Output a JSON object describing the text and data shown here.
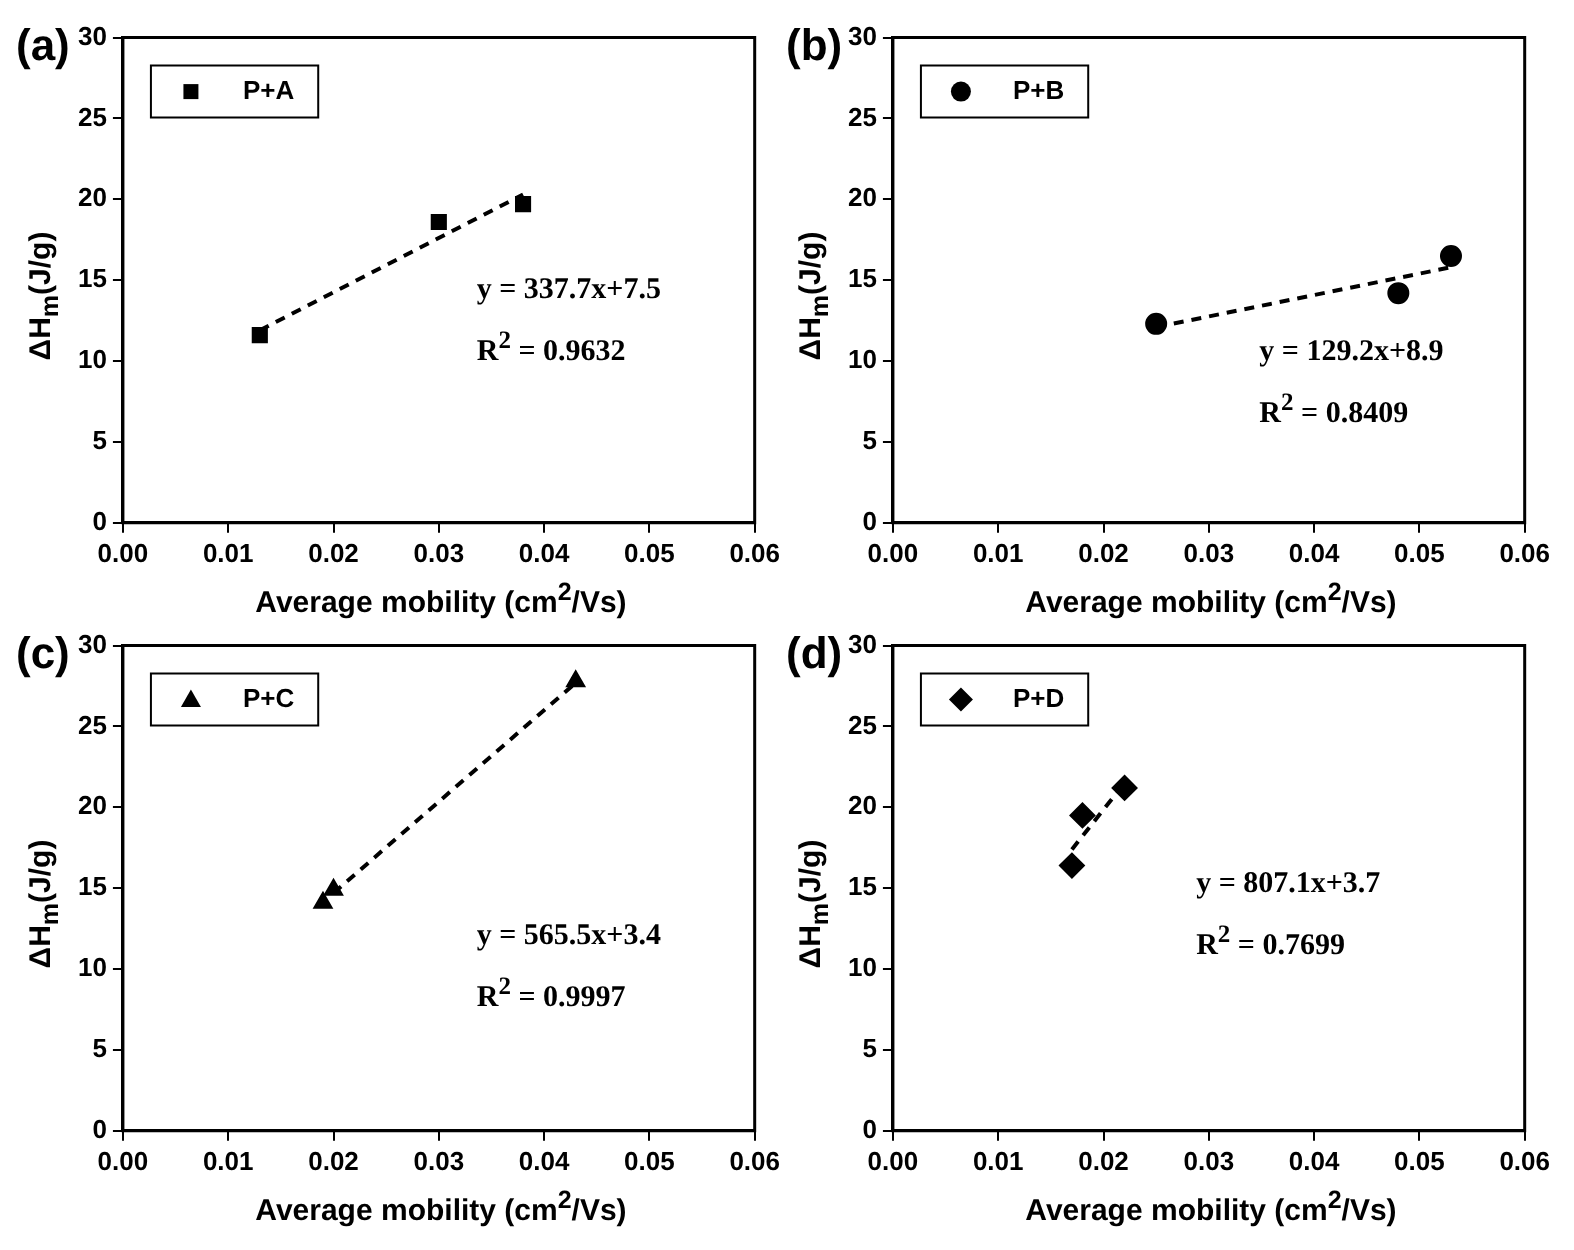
{
  "chart_data": [
    {
      "type": "scatter",
      "title": "(a)",
      "xlabel": "Average mobility (cm$^{2}$/Vs)",
      "ylabel": "ΔH$_{m}$(J/g)",
      "legend": "top left",
      "grid": false,
      "marker": "square",
      "xlim": [
        0,
        0.06
      ],
      "xticks": [
        {
          "value": 0,
          "label": "0.00"
        },
        {
          "value": 0.01,
          "label": "0.01"
        },
        {
          "value": 0.02,
          "label": "0.02"
        },
        {
          "value": 0.03,
          "label": "0.03"
        },
        {
          "value": 0.04,
          "label": "0.04"
        },
        {
          "value": 0.05,
          "label": "0.05"
        },
        {
          "value": 0.06,
          "label": "0.06"
        }
      ],
      "ylim": [
        0,
        30
      ],
      "yticks": [
        0,
        5,
        10,
        15,
        20,
        25,
        30
      ],
      "series": [
        {
          "name": "P+A",
          "color": "#000000",
          "x": [
            0.013,
            0.03,
            0.038
          ],
          "values": [
            11.6,
            18.6,
            19.7
          ]
        },
        {
          "type": "line",
          "color": "#000000",
          "marker": "none",
          "line_style": "dashed",
          "x": [
            0.013,
            0.038
          ],
          "values": [
            11.9,
            20.3
          ]
        }
      ],
      "annotations": [
        "y = 337.7x+7.5",
        "R$^{2}$ = 0.9632"
      ]
    },
    {
      "type": "scatter",
      "title": "(b)",
      "xlabel": "Average mobility (cm$^{2}$/Vs)",
      "ylabel": "ΔH$_{m}$(J/g)",
      "legend": "top left",
      "grid": false,
      "marker": "circle",
      "xlim": [
        0,
        0.06
      ],
      "xticks": [
        {
          "value": 0,
          "label": "0.00"
        },
        {
          "value": 0.01,
          "label": "0.01"
        },
        {
          "value": 0.02,
          "label": "0.02"
        },
        {
          "value": 0.03,
          "label": "0.03"
        },
        {
          "value": 0.04,
          "label": "0.04"
        },
        {
          "value": 0.05,
          "label": "0.05"
        },
        {
          "value": 0.06,
          "label": "0.06"
        }
      ],
      "ylim": [
        0,
        30
      ],
      "yticks": [
        0,
        5,
        10,
        15,
        20,
        25,
        30
      ],
      "series": [
        {
          "name": "P+B",
          "color": "#000000",
          "x": [
            0.025,
            0.048,
            0.053
          ],
          "values": [
            12.3,
            14.2,
            16.5
          ]
        },
        {
          "type": "line",
          "color": "#000000",
          "marker": "none",
          "line_style": "dashed",
          "x": [
            0.025,
            0.053
          ],
          "values": [
            12.1,
            15.8
          ]
        }
      ],
      "annotations": [
        "y = 129.2x+8.9",
        "R$^{2}$ = 0.8409"
      ]
    },
    {
      "type": "scatter",
      "title": "(c)",
      "xlabel": "Average mobility (cm$^{2}$/Vs)",
      "ylabel": "ΔH$_{m}$(J/g)",
      "legend": "top left",
      "grid": false,
      "marker": "triangle",
      "xlim": [
        0,
        0.06
      ],
      "xticks": [
        {
          "value": 0,
          "label": "0.00"
        },
        {
          "value": 0.01,
          "label": "0.01"
        },
        {
          "value": 0.02,
          "label": "0.02"
        },
        {
          "value": 0.03,
          "label": "0.03"
        },
        {
          "value": 0.04,
          "label": "0.04"
        },
        {
          "value": 0.05,
          "label": "0.05"
        },
        {
          "value": 0.06,
          "label": "0.06"
        }
      ],
      "ylim": [
        0,
        30
      ],
      "yticks": [
        0,
        5,
        10,
        15,
        20,
        25,
        30
      ],
      "series": [
        {
          "name": "P+C",
          "color": "#000000",
          "x": [
            0.019,
            0.02,
            0.043
          ],
          "values": [
            14.1,
            14.9,
            27.8
          ]
        },
        {
          "type": "line",
          "color": "#000000",
          "marker": "none",
          "line_style": "dashed",
          "x": [
            0.02,
            0.043
          ],
          "values": [
            14.7,
            27.7
          ]
        }
      ],
      "annotations": [
        "y = 565.5x+3.4",
        "R$^{2}$ = 0.9997"
      ]
    },
    {
      "type": "scatter",
      "title": "(d)",
      "xlabel": "Average mobility (cm$^{2}$/Vs)",
      "ylabel": "ΔH$_{m}$(J/g)",
      "legend": "top left",
      "grid": false,
      "marker": "diamond",
      "xlim": [
        0,
        0.06
      ],
      "xticks": [
        {
          "value": 0,
          "label": "0.00"
        },
        {
          "value": 0.01,
          "label": "0.01"
        },
        {
          "value": 0.02,
          "label": "0.02"
        },
        {
          "value": 0.03,
          "label": "0.03"
        },
        {
          "value": 0.04,
          "label": "0.04"
        },
        {
          "value": 0.05,
          "label": "0.05"
        },
        {
          "value": 0.06,
          "label": "0.06"
        }
      ],
      "ylim": [
        0,
        30
      ],
      "yticks": [
        0,
        5,
        10,
        15,
        20,
        25,
        30
      ],
      "series": [
        {
          "name": "P+D",
          "color": "#000000",
          "x": [
            0.017,
            0.018,
            0.022
          ],
          "values": [
            16.4,
            19.5,
            21.2
          ]
        },
        {
          "type": "line",
          "color": "#000000",
          "marker": "none",
          "line_style": "dashed",
          "x": [
            0.017,
            0.022
          ],
          "values": [
            17.4,
            21.5
          ]
        }
      ],
      "annotations": [
        "y = 807.1x+3.7",
        "R$^{2}$ = 0.7699"
      ]
    }
  ]
}
